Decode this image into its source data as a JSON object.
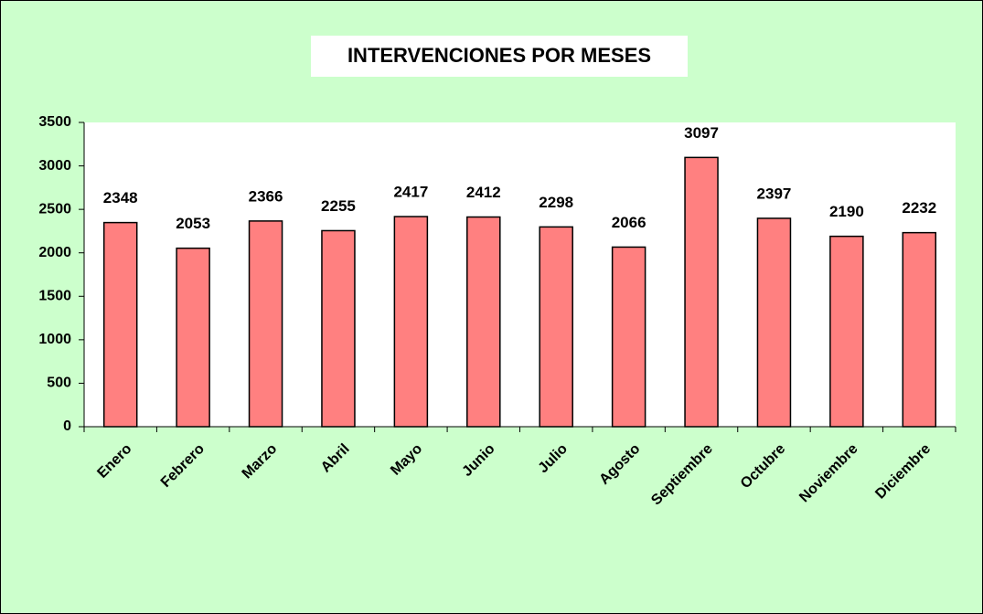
{
  "chart_data": {
    "type": "bar",
    "title": "INTERVENCIONES POR MESES",
    "categories": [
      "Enero",
      "Febrero",
      "Marzo",
      "Abril",
      "Mayo",
      "Junio",
      "Julio",
      "Agosto",
      "Septiembre",
      "Octubre",
      "Noviembre",
      "Diciembre"
    ],
    "values": [
      2348,
      2053,
      2366,
      2255,
      2417,
      2412,
      2298,
      2066,
      3097,
      2397,
      2190,
      2232
    ],
    "color": "#ff8080",
    "ylim": [
      0,
      3500
    ],
    "yticks": [
      0,
      500,
      1000,
      1500,
      2000,
      2500,
      3000,
      3500
    ],
    "grid": false
  }
}
